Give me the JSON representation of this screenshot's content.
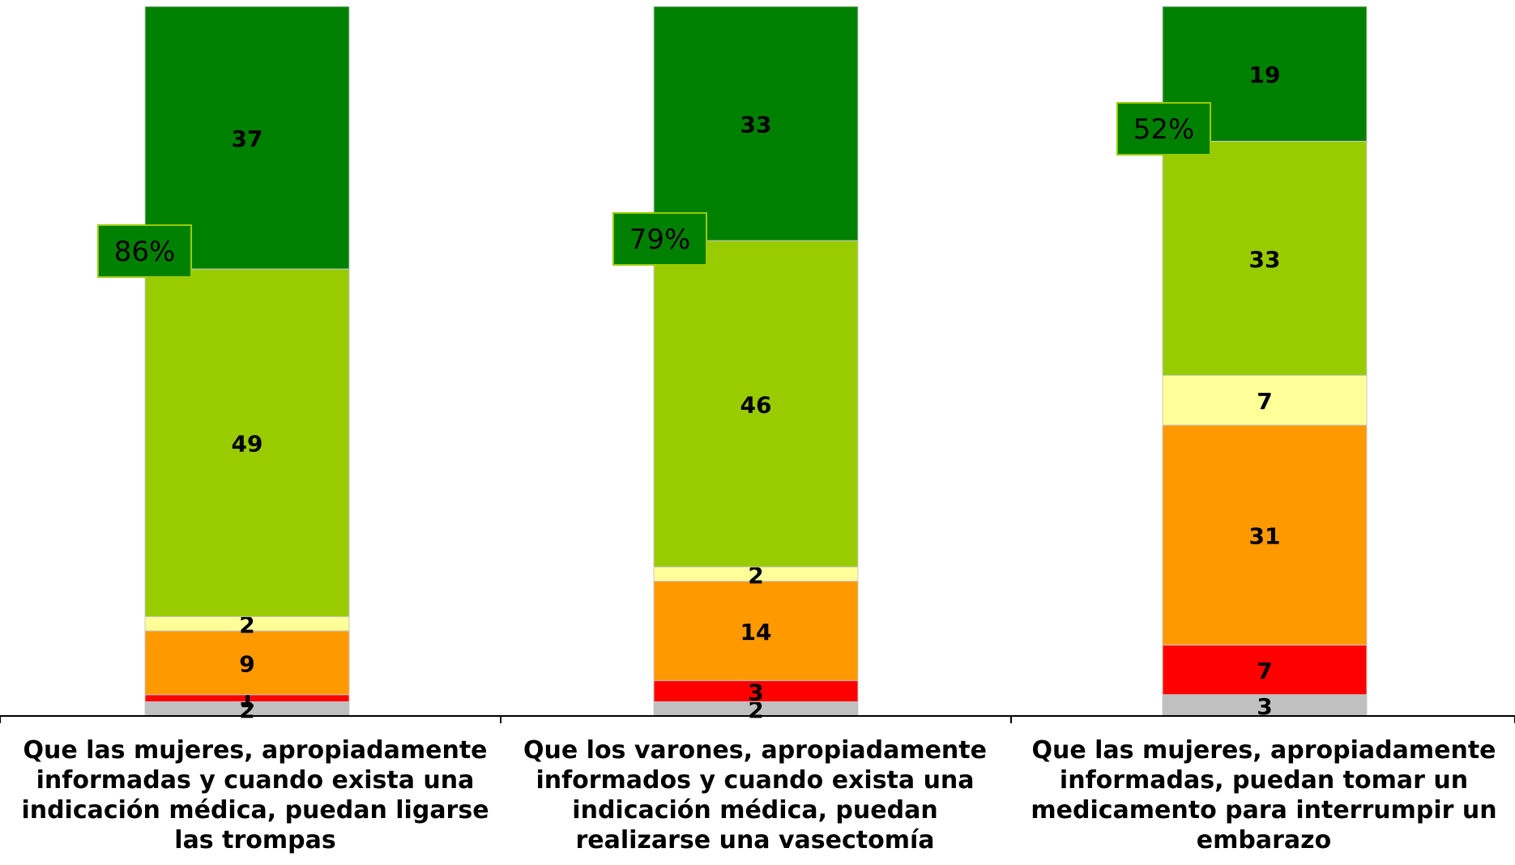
{
  "chart_data": {
    "type": "bar",
    "stacked": true,
    "ylim": [
      0,
      100
    ],
    "grid": false,
    "categories": [
      "Que las mujeres, apropiadamente informadas y cuando exista una indicación médica, puedan ligarse las trompas",
      "Que los varones, apropiadamente informados y cuando exista una indicación médica, puedan realizarse una vasectomía",
      "Que las mujeres, apropiadamente informadas, puedan tomar un medicamento para interrumpir un embarazo"
    ],
    "series": [
      {
        "values": [
          2,
          2,
          3
        ],
        "color": "#C0C0C0"
      },
      {
        "values": [
          1,
          3,
          7
        ],
        "color": "#FF0000"
      },
      {
        "values": [
          9,
          14,
          31
        ],
        "color": "#FF9900"
      },
      {
        "values": [
          2,
          2,
          7
        ],
        "color": "#FFFF99"
      },
      {
        "values": [
          49,
          46,
          33
        ],
        "color": "#99CC00"
      },
      {
        "values": [
          37,
          33,
          19
        ],
        "color": "#008000"
      }
    ],
    "annotations": [
      "86%",
      "79%",
      "52%"
    ],
    "annotation_color": "#008000"
  }
}
